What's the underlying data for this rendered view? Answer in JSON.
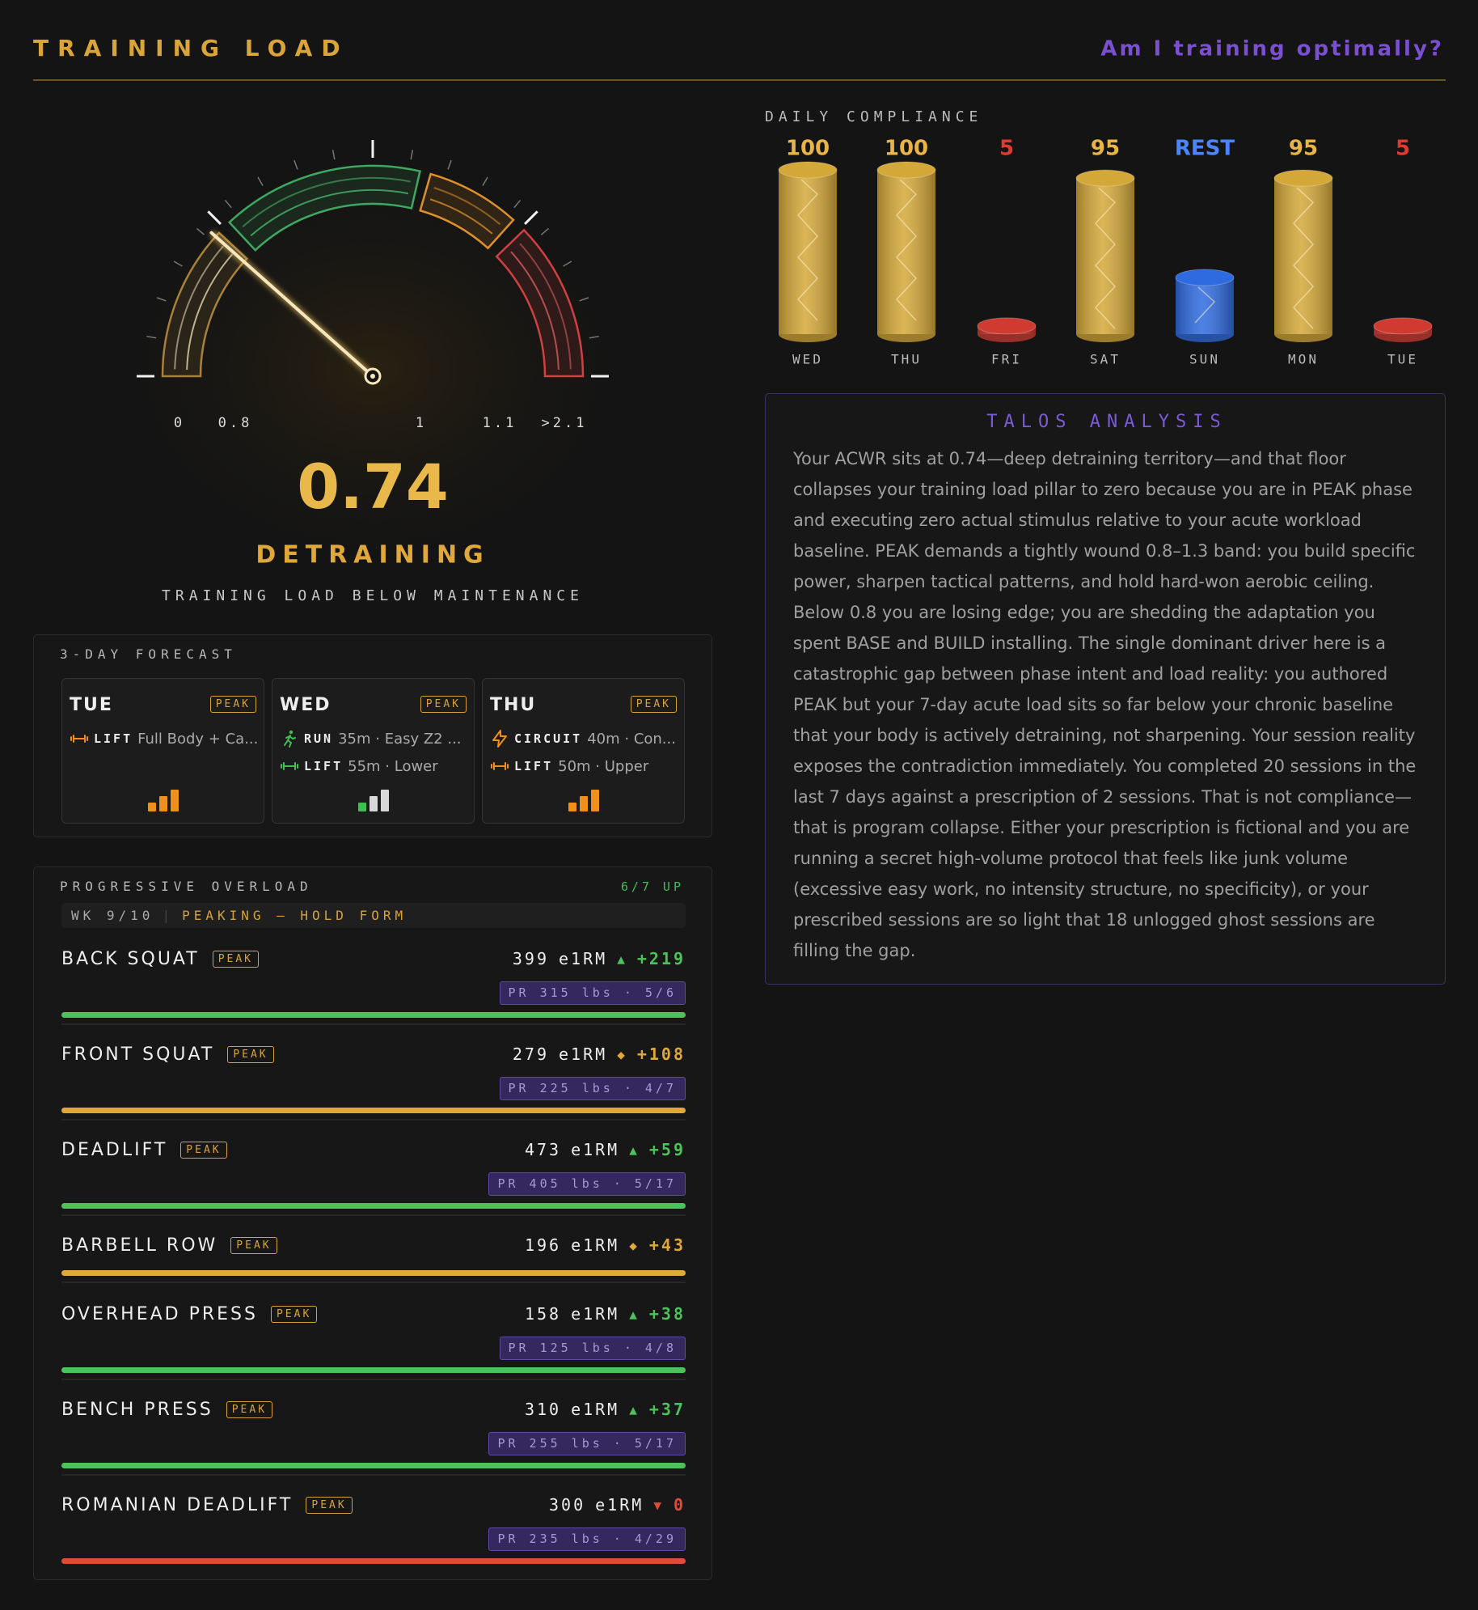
{
  "header": {
    "title": "TRAINING LOAD",
    "question": "Am I training optimally?"
  },
  "gauge": {
    "value": 0.74,
    "ticks": [
      0,
      0.8,
      1,
      1.1,
      {
        "value": 2.1,
        "label": ">2.1"
      }
    ],
    "status": "DETRAINING",
    "description": "TRAINING LOAD BELOW MAINTENANCE"
  },
  "compliance": {
    "title": "DAILY COMPLIANCE",
    "days": [
      {
        "day": "WED",
        "value": 100,
        "color": "#d4a838"
      },
      {
        "day": "THU",
        "value": 100,
        "color": "#d4a838"
      },
      {
        "day": "FRI",
        "value": 5,
        "color": "#d03a30"
      },
      {
        "day": "SAT",
        "value": 95,
        "color": "#d4a838"
      },
      {
        "day": "SUN",
        "label": "REST",
        "color": "#2f6be0"
      },
      {
        "day": "MON",
        "value": 95,
        "color": "#d4a838"
      },
      {
        "day": "TUE",
        "value": 5,
        "color": "#d03a30"
      }
    ]
  },
  "analysis": {
    "title": "TALOS ANALYSIS",
    "text": "Your ACWR sits at 0.74—deep detraining territory—and that floor collapses your training load pillar to zero because you are in PEAK phase and executing zero actual stimulus relative to your acute workload baseline. PEAK demands a tightly wound 0.8–1.3 band: you build specific power, sharpen tactical patterns, and hold hard-won aerobic ceiling. Below 0.8 you are losing edge; you are shedding the adaptation you spent BASE and BUILD installing. The single dominant driver here is a catastrophic gap between phase intent and load reality: you authored PEAK but your 7-day acute load sits so far below your chronic baseline that your body is actively detraining, not sharpening. Your session reality exposes the contradiction immediately. You completed 20 sessions in the last 7 days against a prescription of 2 sessions. That is not compliance—that is program collapse. Either your prescription is fictional and you are running a secret high-volume protocol that feels like junk volume (excessive easy work, no intensity structure, no specificity), or your prescribed sessions are so light that 18 unlogged ghost sessions are filling the gap."
  },
  "forecast": {
    "title": "3-DAY FORECAST",
    "days": [
      {
        "day": "TUE",
        "phase": "PEAK",
        "color": "#f0901c",
        "bar_colors": [
          "#f0901c",
          "#f0901c",
          "#f0901c"
        ],
        "sessions": [
          {
            "type": "LIFT",
            "detail": "Full Body + Ca..."
          }
        ]
      },
      {
        "day": "WED",
        "phase": "PEAK",
        "color": "#3fbf4f",
        "bar_colors": [
          "#3fbf4f",
          "#d8d8d8",
          "#d8d8d8"
        ],
        "sessions": [
          {
            "type": "RUN",
            "detail": "35m · Easy Z2 ..."
          },
          {
            "type": "LIFT",
            "detail": "55m · Lower"
          }
        ]
      },
      {
        "day": "THU",
        "phase": "PEAK",
        "color": "#f0901c",
        "bar_colors": [
          "#f0901c",
          "#f0901c",
          "#f0901c"
        ],
        "sessions": [
          {
            "type": "CIRCUIT",
            "detail": "40m · Con..."
          },
          {
            "type": "LIFT",
            "detail": "50m · Upper"
          }
        ]
      }
    ]
  },
  "overload": {
    "title": "PROGRESSIVE OVERLOAD",
    "summary": "6/7 UP",
    "week": "WK 9/10",
    "note": "PEAKING — HOLD FORM",
    "unit": "e1RM",
    "lifts": [
      {
        "name": "BACK SQUAT",
        "phase": "PEAK",
        "e1rm": 399,
        "trend": "up",
        "delta": "+219",
        "pr": "PR 315 lbs · 5/6"
      },
      {
        "name": "FRONT SQUAT",
        "phase": "PEAK",
        "e1rm": 279,
        "trend": "flat",
        "delta": "+108",
        "pr": "PR 225 lbs · 4/7"
      },
      {
        "name": "DEADLIFT",
        "phase": "PEAK",
        "e1rm": 473,
        "trend": "up",
        "delta": "+59",
        "pr": "PR 405 lbs · 5/17"
      },
      {
        "name": "BARBELL ROW",
        "phase": "PEAK",
        "e1rm": 196,
        "trend": "flat",
        "delta": "+43"
      },
      {
        "name": "OVERHEAD PRESS",
        "phase": "PEAK",
        "e1rm": 158,
        "trend": "up",
        "delta": "+38",
        "pr": "PR 125 lbs · 4/8"
      },
      {
        "name": "BENCH PRESS",
        "phase": "PEAK",
        "e1rm": 310,
        "trend": "up",
        "delta": "+37",
        "pr": "PR 255 lbs · 5/17"
      },
      {
        "name": "ROMANIAN DEADLIFT",
        "phase": "PEAK",
        "e1rm": 300,
        "trend": "down",
        "delta": "0",
        "pr": "PR 235 lbs · 4/29"
      }
    ]
  }
}
